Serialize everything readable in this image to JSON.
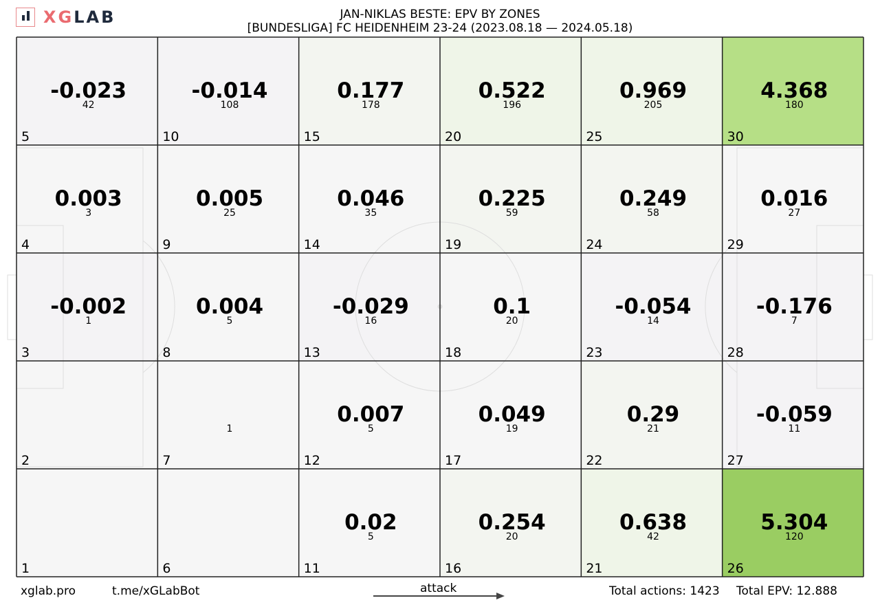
{
  "brand": {
    "x": "X",
    "g": "G",
    "rest": "LAB"
  },
  "title": {
    "line1": "JAN-NIKLAS BESTE: EPV BY ZONES",
    "line2": "[BUNDESLIGA] FC HEIDENHEIM 23-24 (2023.08.18 — 2024.05.18)"
  },
  "footer": {
    "site": "xglab.pro",
    "bot": "t.me/xGLabBot",
    "attack": "attack",
    "total_actions": "Total actions: 1423",
    "total_epv": "Total EPV: 12.888"
  },
  "colors": {
    "neutral": "#f6f6f6",
    "negative": "#f4f3f5",
    "low_green": "#eff5e8",
    "mid_green": "#b6df86",
    "high_green": "#9acd62",
    "grid": "#222222",
    "pitch_lines": "#dedede"
  },
  "chart_data": {
    "type": "heatmap",
    "title": "JAN-NIKLAS BESTE: EPV BY ZONES",
    "subtitle": "[BUNDESLIGA] FC HEIDENHEIM 23-24 (2023.08.18 — 2024.05.18)",
    "columns": 6,
    "rows": 5,
    "zones": [
      {
        "zone": "1",
        "epv": "",
        "actions": ""
      },
      {
        "zone": "2",
        "epv": "",
        "actions": ""
      },
      {
        "zone": "3",
        "epv": "-0.002",
        "actions": "1"
      },
      {
        "zone": "4",
        "epv": "0.003",
        "actions": "3"
      },
      {
        "zone": "5",
        "epv": "-0.023",
        "actions": "42"
      },
      {
        "zone": "6",
        "epv": "",
        "actions": ""
      },
      {
        "zone": "7",
        "epv": "",
        "actions": "1"
      },
      {
        "zone": "8",
        "epv": "0.004",
        "actions": "5"
      },
      {
        "zone": "9",
        "epv": "0.005",
        "actions": "25"
      },
      {
        "zone": "10",
        "epv": "-0.014",
        "actions": "108"
      },
      {
        "zone": "11",
        "epv": "0.02",
        "actions": "5"
      },
      {
        "zone": "12",
        "epv": "0.007",
        "actions": "5"
      },
      {
        "zone": "13",
        "epv": "-0.029",
        "actions": "16"
      },
      {
        "zone": "14",
        "epv": "0.046",
        "actions": "35"
      },
      {
        "zone": "15",
        "epv": "0.177",
        "actions": "178"
      },
      {
        "zone": "16",
        "epv": "0.254",
        "actions": "20"
      },
      {
        "zone": "17",
        "epv": "0.049",
        "actions": "19"
      },
      {
        "zone": "18",
        "epv": "0.1",
        "actions": "20"
      },
      {
        "zone": "19",
        "epv": "0.225",
        "actions": "59"
      },
      {
        "zone": "20",
        "epv": "0.522",
        "actions": "196"
      },
      {
        "zone": "21",
        "epv": "0.638",
        "actions": "42"
      },
      {
        "zone": "22",
        "epv": "0.29",
        "actions": "21"
      },
      {
        "zone": "23",
        "epv": "-0.054",
        "actions": "14"
      },
      {
        "zone": "24",
        "epv": "0.249",
        "actions": "58"
      },
      {
        "zone": "25",
        "epv": "0.969",
        "actions": "205"
      },
      {
        "zone": "26",
        "epv": "5.304",
        "actions": "120"
      },
      {
        "zone": "27",
        "epv": "-0.059",
        "actions": "11"
      },
      {
        "zone": "28",
        "epv": "-0.176",
        "actions": "7"
      },
      {
        "zone": "29",
        "epv": "0.016",
        "actions": "27"
      },
      {
        "zone": "30",
        "epv": "4.368",
        "actions": "180"
      }
    ]
  }
}
